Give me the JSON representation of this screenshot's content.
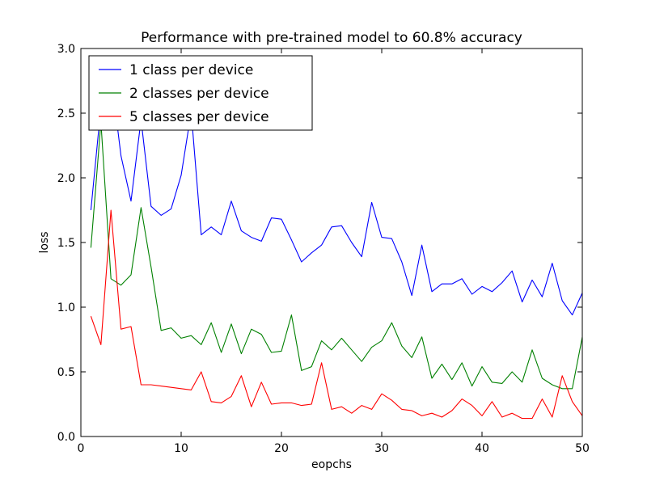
{
  "chart_data": {
    "type": "line",
    "title": "Performance with pre-trained model to 60.8% accuracy",
    "xlabel": "eopchs",
    "ylabel": "loss",
    "xlim": [
      0,
      50
    ],
    "ylim": [
      0.0,
      3.0
    ],
    "xticks": [
      0,
      10,
      20,
      30,
      40,
      50
    ],
    "yticks": [
      0.0,
      0.5,
      1.0,
      1.5,
      2.0,
      2.5,
      3.0
    ],
    "xtick_labels": [
      "0",
      "10",
      "20",
      "30",
      "40",
      "50"
    ],
    "ytick_labels": [
      "0.0",
      "0.5",
      "1.0",
      "1.5",
      "2.0",
      "2.5",
      "3.0"
    ],
    "grid": false,
    "legend_position": "top-left",
    "x": [
      1,
      2,
      3,
      4,
      5,
      6,
      7,
      8,
      9,
      10,
      11,
      12,
      13,
      14,
      15,
      16,
      17,
      18,
      19,
      20,
      21,
      22,
      23,
      24,
      25,
      26,
      27,
      28,
      29,
      30,
      31,
      32,
      33,
      34,
      35,
      36,
      37,
      38,
      39,
      40,
      41,
      42,
      43,
      44,
      45,
      46,
      47,
      48,
      49,
      50
    ],
    "series": [
      {
        "name": "1 class per device",
        "color": "#0000ff",
        "values": [
          1.75,
          2.55,
          2.8,
          2.17,
          1.82,
          2.45,
          1.78,
          1.71,
          1.76,
          2.02,
          2.51,
          1.56,
          1.62,
          1.56,
          1.82,
          1.59,
          1.54,
          1.51,
          1.69,
          1.68,
          1.52,
          1.35,
          1.42,
          1.48,
          1.62,
          1.63,
          1.5,
          1.39,
          1.81,
          1.54,
          1.53,
          1.35,
          1.09,
          1.48,
          1.12,
          1.18,
          1.18,
          1.22,
          1.1,
          1.16,
          1.12,
          1.19,
          1.28,
          1.04,
          1.21,
          1.08,
          1.34,
          1.05,
          0.94,
          1.11
        ]
      },
      {
        "name": "2 classes per device",
        "color": "#008000",
        "values": [
          1.46,
          2.43,
          1.22,
          1.17,
          1.25,
          1.77,
          1.31,
          0.82,
          0.84,
          0.76,
          0.78,
          0.71,
          0.88,
          0.65,
          0.87,
          0.64,
          0.83,
          0.79,
          0.65,
          0.66,
          0.94,
          0.51,
          0.54,
          0.74,
          0.67,
          0.76,
          0.67,
          0.58,
          0.69,
          0.74,
          0.88,
          0.7,
          0.61,
          0.77,
          0.45,
          0.56,
          0.44,
          0.57,
          0.39,
          0.54,
          0.42,
          0.41,
          0.5,
          0.42,
          0.67,
          0.45,
          0.4,
          0.37,
          0.37,
          0.77
        ]
      },
      {
        "name": "5 classes per device",
        "color": "#ff0000",
        "values": [
          0.93,
          0.71,
          1.75,
          0.83,
          0.85,
          0.4,
          0.4,
          0.39,
          0.38,
          0.37,
          0.36,
          0.5,
          0.27,
          0.26,
          0.31,
          0.47,
          0.23,
          0.42,
          0.25,
          0.26,
          0.26,
          0.24,
          0.25,
          0.57,
          0.21,
          0.23,
          0.18,
          0.24,
          0.21,
          0.33,
          0.28,
          0.21,
          0.2,
          0.16,
          0.18,
          0.15,
          0.2,
          0.29,
          0.24,
          0.16,
          0.27,
          0.15,
          0.18,
          0.14,
          0.14,
          0.29,
          0.15,
          0.47,
          0.27,
          0.16
        ]
      }
    ]
  }
}
